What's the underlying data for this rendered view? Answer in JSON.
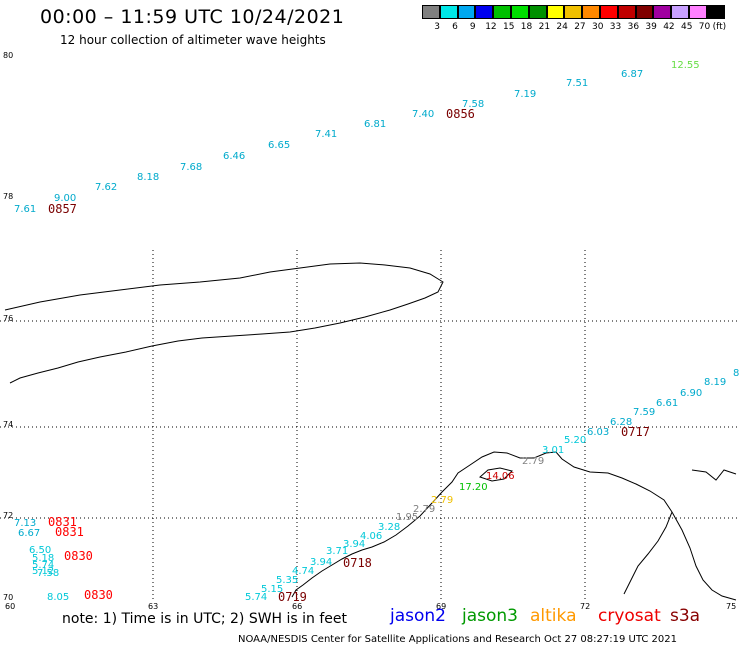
{
  "header": {
    "title": "00:00 – 11:59 UTC 10/24/2021",
    "subtitle": "12 hour collection of altimeter wave heights"
  },
  "colorbar": {
    "unit": "(ft)",
    "bins": [
      {
        "label": "3",
        "color": "#808080"
      },
      {
        "label": "6",
        "color": "#00e8e8"
      },
      {
        "label": "9",
        "color": "#00a8f0"
      },
      {
        "label": "12",
        "color": "#0000f0"
      },
      {
        "label": "15",
        "color": "#00c000"
      },
      {
        "label": "18",
        "color": "#00e000"
      },
      {
        "label": "21",
        "color": "#009000"
      },
      {
        "label": "24",
        "color": "#ffff00"
      },
      {
        "label": "27",
        "color": "#f0c000"
      },
      {
        "label": "30",
        "color": "#ff8800"
      },
      {
        "label": "33",
        "color": "#ff0000"
      },
      {
        "label": "36",
        "color": "#c00000"
      },
      {
        "label": "39",
        "color": "#800000"
      },
      {
        "label": "42",
        "color": "#a000a0"
      },
      {
        "label": "45",
        "color": "#c8a0ff"
      },
      {
        "label": "70",
        "color": "#ff80ff"
      },
      {
        "label": "",
        "color": "#000000"
      }
    ]
  },
  "axes": {
    "lat_labels": [
      "80",
      "78",
      "76",
      "74",
      "72",
      "70"
    ],
    "lon_labels": [
      "60",
      "63",
      "66",
      "69",
      "72",
      "75"
    ]
  },
  "tracks": [
    {
      "values": [
        "7.61",
        "9.00",
        "7.62",
        "8.18",
        "7.68",
        "6.46",
        "6.65",
        "7.41",
        "6.81",
        "7.40",
        "7.58",
        "7.19",
        "7.51",
        "6.87",
        "12.55"
      ],
      "colors": [
        "#00aacc",
        "#00aacc",
        "#00aacc",
        "#00aacc",
        "#00aacc",
        "#00aacc",
        "#00aacc",
        "#00aacc",
        "#00aacc",
        "#00aacc",
        "#00aacc",
        "#00aacc",
        "#00aacc",
        "#00aacc",
        "#66dd44"
      ],
      "times": [
        "0857",
        "0856"
      ],
      "time_color": "#7a0000"
    },
    {
      "values": [
        "5.74",
        "5.15",
        "5.35",
        "4.74",
        "3.94",
        "3.71",
        "3.94",
        "4.06",
        "3.28",
        "1.95",
        "2.79",
        "2.79",
        "17.20",
        "14.06",
        "2.79",
        "3.01",
        "5.20",
        "6.03",
        "6.28",
        "7.59",
        "6.61",
        "6.90",
        "8.19",
        "8"
      ],
      "colors": [
        "#00c8d8",
        "#00c8d8",
        "#00c8d8",
        "#00c8d8",
        "#00c8d8",
        "#00c8d8",
        "#00c8d8",
        "#00c8d8",
        "#00c8d8",
        "#808080",
        "#808080",
        "#f0c000",
        "#00c000",
        "#cc0000",
        "#808080",
        "#00c8d8",
        "#00c8d8",
        "#00aacc",
        "#00aacc",
        "#00aacc",
        "#00aacc",
        "#00aacc",
        "#00aacc",
        "#00aacc"
      ],
      "times": [
        "0719",
        "0718",
        "0717"
      ],
      "time_color": "#7a0000"
    },
    {
      "values": [
        "7.13",
        "6.67",
        "6.50",
        "5.18",
        "5.74",
        "5.12",
        "7.58",
        "8.05"
      ],
      "colors": [
        "#00aacc",
        "#00aacc",
        "#00c8d8",
        "#00c8d8",
        "#00c8d8",
        "#00c8d8",
        "#00c8d8",
        "#00c8d8"
      ],
      "times": [
        "0831",
        "0831",
        "0830",
        "0830"
      ],
      "time_color": "#ff0000"
    }
  ],
  "footer": {
    "note": "note: 1) Time is in UTC; 2) SWH is in feet",
    "credit": "NOAA/NESDIS Center for Satellite Applications and Research    Oct 27 08:27:19 UTC 2021",
    "satellites": [
      {
        "name": "jason2",
        "color": "#0000ee"
      },
      {
        "name": "jason3",
        "color": "#009900"
      },
      {
        "name": "altika",
        "color": "#ff9900"
      },
      {
        "name": "cryosat",
        "color": "#ee0000"
      },
      {
        "name": "s3a",
        "color": "#880000"
      }
    ]
  }
}
